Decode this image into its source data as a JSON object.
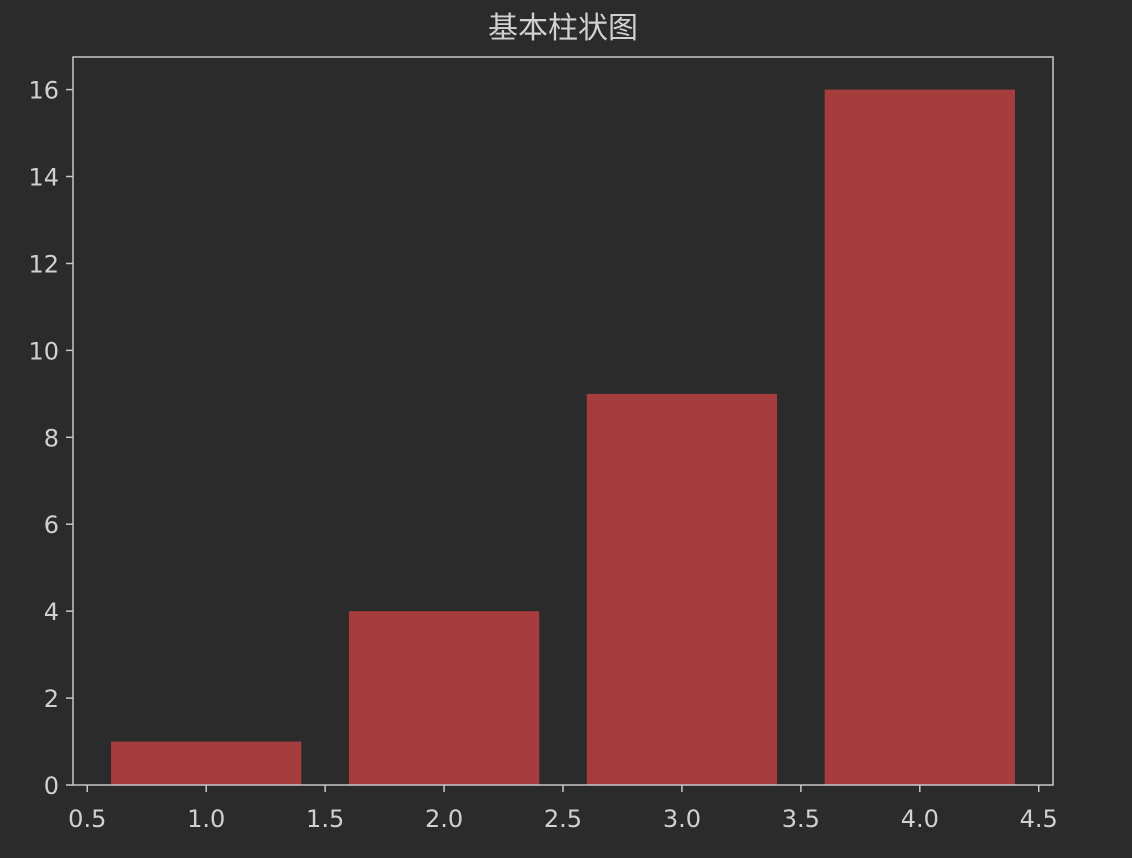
{
  "chart_data": {
    "type": "bar",
    "title": "基本柱状图",
    "x": [
      1,
      2,
      3,
      4
    ],
    "values": [
      1,
      4,
      9,
      16
    ],
    "bar_width": 0.8,
    "xlim": [
      0.44,
      4.56
    ],
    "ylim": [
      0,
      16.75
    ],
    "xticks": [
      "0.5",
      "1.0",
      "1.5",
      "2.0",
      "2.5",
      "3.0",
      "3.5",
      "4.0",
      "4.5"
    ],
    "yticks": [
      "0",
      "2",
      "4",
      "6",
      "8",
      "10",
      "12",
      "14",
      "16"
    ],
    "xlabel": "",
    "ylabel": "",
    "grid": false,
    "colors": {
      "background": "#2b2b2b",
      "bar": "#a63c3c",
      "axis": "#c8c8c8",
      "text": "#d0d0d0"
    }
  }
}
